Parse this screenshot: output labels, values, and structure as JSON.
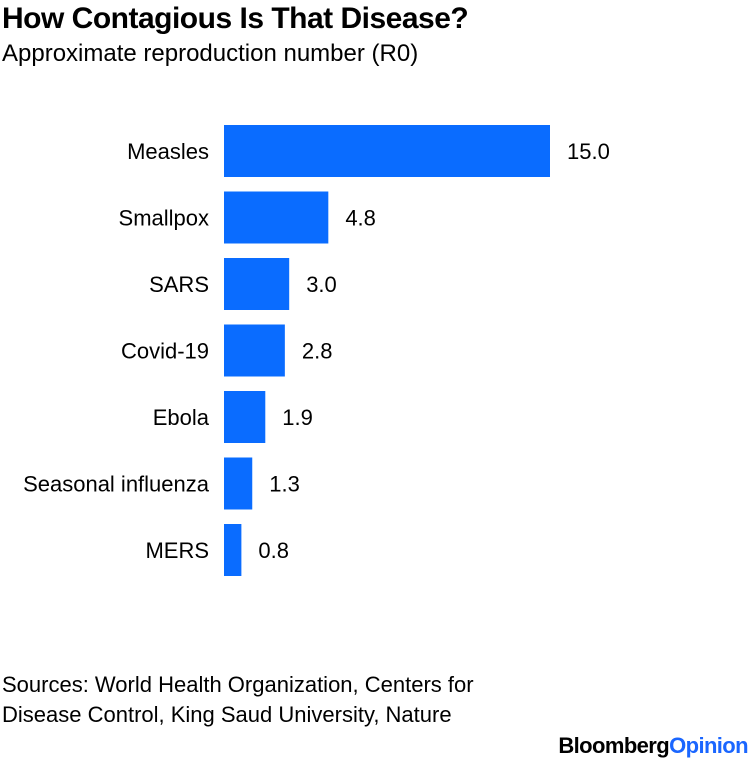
{
  "chart_data": {
    "type": "bar",
    "orientation": "horizontal",
    "title": "How Contagious Is That Disease?",
    "subtitle": "Approximate reproduction number (R0)",
    "categories": [
      "Measles",
      "Smallpox",
      "SARS",
      "Covid-19",
      "Ebola",
      "Seasonal influenza",
      "MERS"
    ],
    "values": [
      15.0,
      4.8,
      3.0,
      2.8,
      1.9,
      1.3,
      0.8
    ],
    "value_labels": [
      "15.0",
      "4.8",
      "3.0",
      "2.8",
      "1.9",
      "1.3",
      "0.8"
    ],
    "xlim": [
      0,
      15
    ],
    "grid": false,
    "bar_color": "#0a6cff"
  },
  "source": "Sources: World Health Organization, Centers for Disease Control, King Saud University, Nature",
  "brand": {
    "part1": "Bloomberg",
    "part2": "Opinion",
    "accent_color": "#1a66ff"
  }
}
